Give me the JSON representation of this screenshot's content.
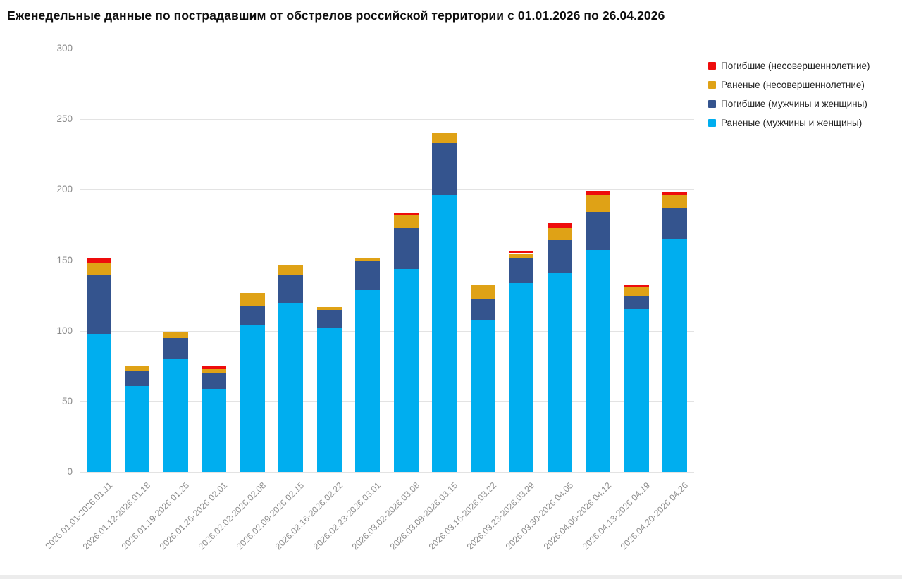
{
  "title": "Еженедельные данные по пострадавшим от обстрелов российской территории с 01.01.2026 по 26.04.2026",
  "chart_data": {
    "type": "bar",
    "stacked": true,
    "title": "Еженедельные данные по пострадавшим от обстрелов российской территории с 01.01.2026 по 26.04.2026",
    "xlabel": "",
    "ylabel": "",
    "ylim": [
      0,
      300
    ],
    "yticks": [
      0,
      50,
      100,
      150,
      200,
      250,
      300
    ],
    "grid": true,
    "legend_position": "top-right",
    "x_tick_rotation": -45,
    "categories": [
      "2026.01.01-2026.01.11",
      "2026.01.12-2026.01.18",
      "2026.01.19-2026.01.25",
      "2026.01.26-2026.02.01",
      "2026.02.02-2026.02.08",
      "2026.02.09-2026.02.15",
      "2026.02.16-2026.02.22",
      "2026.02.23-2026.03.01",
      "2026.03.02-2026.03.08",
      "2026.03.09-2026.03.15",
      "2026.03.16-2026.03.22",
      "2026.03.23-2026.03.29",
      "2026.03.30-2026.04.05",
      "2026.04.06-2026.04.12",
      "2026.04.13-2026.04.19",
      "2026.04.20-2026.04.26"
    ],
    "series": [
      {
        "name": "Погибшие (несовершеннолетние)",
        "color": "#ee0c0c",
        "values": [
          4,
          0,
          0,
          2,
          0,
          0,
          0,
          0,
          1,
          0,
          0,
          1,
          3,
          3,
          2,
          2
        ]
      },
      {
        "name": "Раненые (несовершеннолетние)",
        "color": "#dfa216",
        "values": [
          8,
          3,
          4,
          3,
          9,
          7,
          2,
          2,
          9,
          7,
          10,
          3,
          9,
          12,
          6,
          9
        ]
      },
      {
        "name": "Погибшие (мужчины и женщины)",
        "color": "#34548e",
        "values": [
          42,
          11,
          15,
          11,
          14,
          20,
          13,
          21,
          29,
          37,
          15,
          18,
          23,
          27,
          9,
          22
        ]
      },
      {
        "name": "Раненые (мужчины и женщины)",
        "color": "#00aeef",
        "values": [
          98,
          61,
          80,
          59,
          104,
          120,
          102,
          129,
          144,
          196,
          108,
          134,
          141,
          157,
          116,
          165
        ]
      }
    ],
    "totals": [
      152,
      75,
      99,
      75,
      127,
      147,
      117,
      152,
      183,
      240,
      133,
      156,
      176,
      199,
      133,
      198
    ]
  }
}
